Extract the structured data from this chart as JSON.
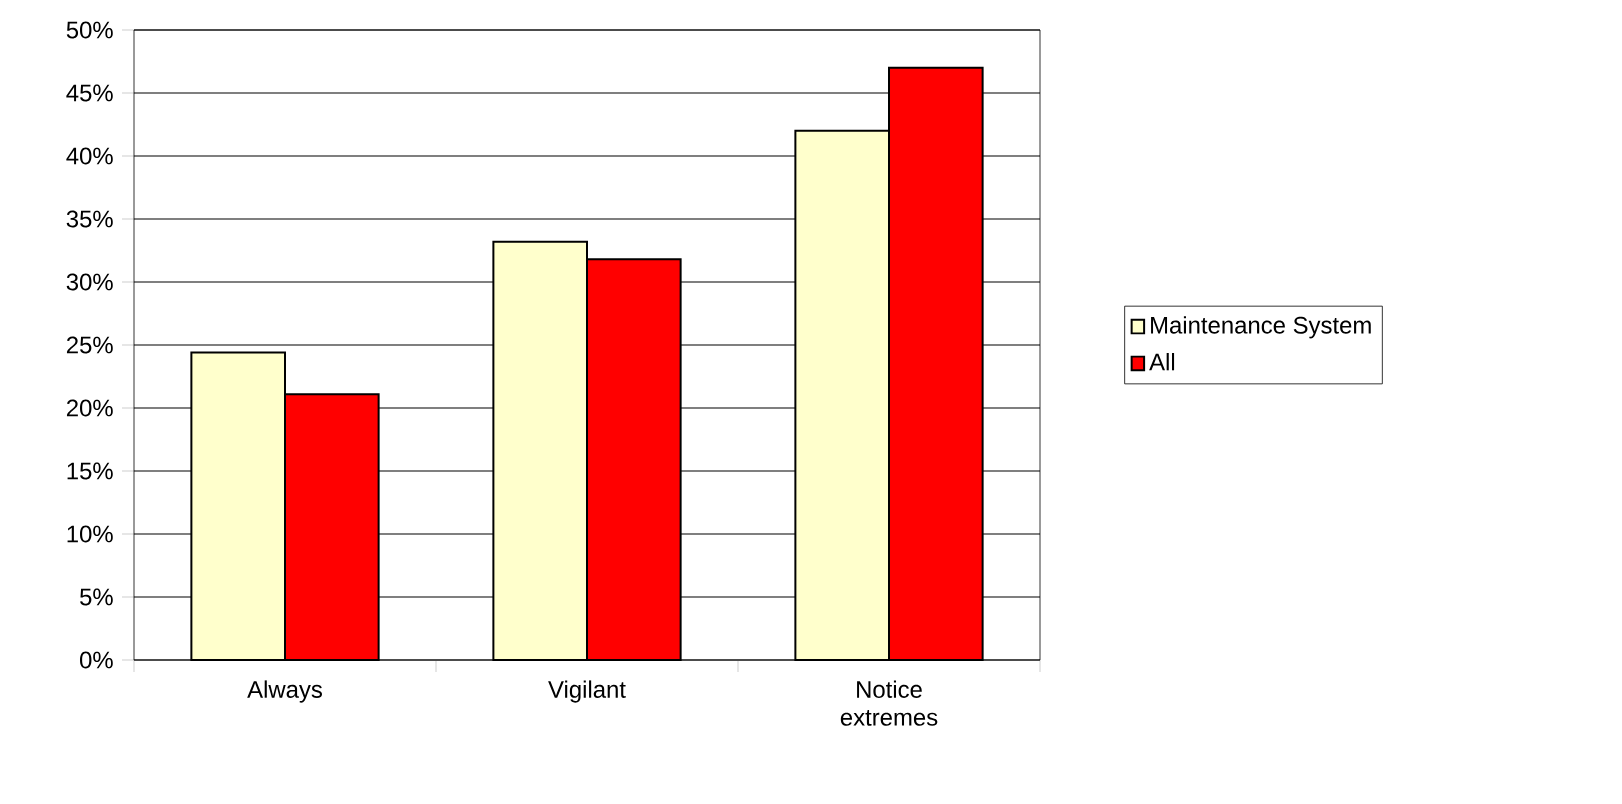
{
  "chart_data": {
    "type": "bar",
    "categories": [
      "Always",
      "Vigilant",
      "Notice extremes"
    ],
    "series": [
      {
        "name": "Maintenance System",
        "color": "#ffffcc",
        "values": [
          24.4,
          33.2,
          42.0
        ]
      },
      {
        "name": "All",
        "color": "#ff0000",
        "values": [
          21.1,
          31.8,
          47.0
        ]
      }
    ],
    "ylim": [
      0,
      50
    ],
    "yticks": [
      {
        "value": 0,
        "label": "0%"
      },
      {
        "value": 5,
        "label": "5%"
      },
      {
        "value": 10,
        "label": "10%"
      },
      {
        "value": 15,
        "label": "15%"
      },
      {
        "value": 20,
        "label": "20%"
      },
      {
        "value": 25,
        "label": "25%"
      },
      {
        "value": 30,
        "label": "30%"
      },
      {
        "value": 35,
        "label": "35%"
      },
      {
        "value": 40,
        "label": "40%"
      },
      {
        "value": 45,
        "label": "45%"
      },
      {
        "value": 50,
        "label": "50%"
      }
    ],
    "grid": "y",
    "legend": "right"
  }
}
